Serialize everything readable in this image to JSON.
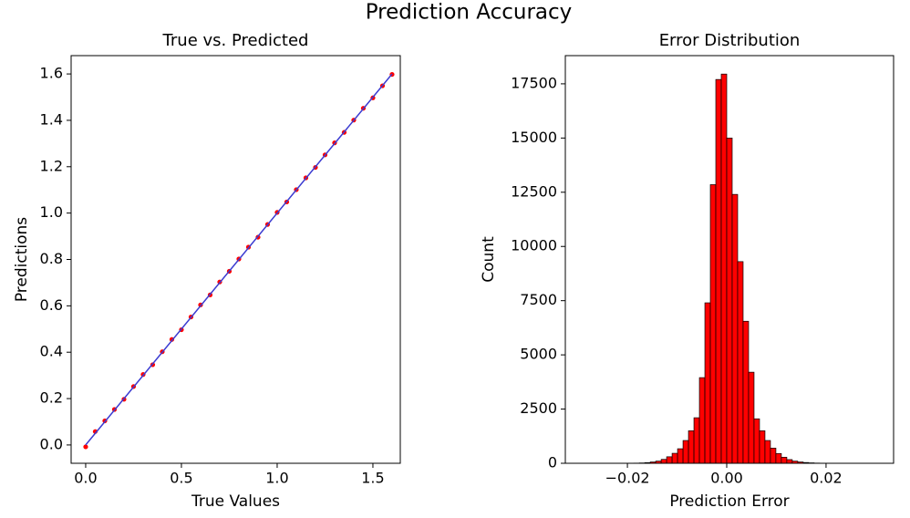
{
  "title": "Prediction Accuracy",
  "chart_data": [
    {
      "type": "scatter",
      "title": "True vs. Predicted",
      "xlabel": "True Values",
      "ylabel": "Predictions",
      "xlim": [
        -0.076,
        1.643
      ],
      "ylim": [
        -0.079,
        1.679
      ],
      "xticks": [
        {
          "value": 0,
          "label": "0.0"
        },
        {
          "value": 0.5,
          "label": "0.5"
        },
        {
          "value": 1,
          "label": "1.0"
        },
        {
          "value": 1.5,
          "label": "1.5"
        }
      ],
      "yticks": [
        {
          "value": 0,
          "label": "0.0"
        },
        {
          "value": 0.2,
          "label": "0.2"
        },
        {
          "value": 0.4,
          "label": "0.4"
        },
        {
          "value": 0.6,
          "label": "0.6"
        },
        {
          "value": 0.8,
          "label": "0.8"
        },
        {
          "value": 1,
          "label": "1.0"
        },
        {
          "value": 1.2,
          "label": "1.2"
        },
        {
          "value": 1.4,
          "label": "1.4"
        },
        {
          "value": 1.6,
          "label": "1.6"
        }
      ],
      "series": [
        {
          "color": "#ff0000",
          "x": [
            0,
            0.05,
            0.1,
            0.15,
            0.2,
            0.25,
            0.3,
            0.35,
            0.4,
            0.45,
            0.5,
            0.55,
            0.6,
            0.65,
            0.7,
            0.75,
            0.8,
            0.85,
            0.9,
            0.95,
            1,
            1.05,
            1.1,
            1.15,
            1.2,
            1.25,
            1.3,
            1.35,
            1.4,
            1.45,
            1.5,
            1.55,
            1.6
          ],
          "values": [
            -0.008,
            0.058,
            0.104,
            0.153,
            0.197,
            0.252,
            0.304,
            0.346,
            0.402,
            0.455,
            0.497,
            0.552,
            0.604,
            0.647,
            0.703,
            0.749,
            0.802,
            0.853,
            0.896,
            0.951,
            1.003,
            1.048,
            1.101,
            1.152,
            1.197,
            1.251,
            1.303,
            1.348,
            1.401,
            1.452,
            1.497,
            1.549,
            1.598
          ]
        },
        {
          "color": "#3b3bd1",
          "style": "line",
          "x": [
            0,
            1.6
          ],
          "values": [
            0,
            1.6
          ]
        }
      ]
    },
    {
      "type": "histogram",
      "title": "Error Distribution",
      "xlabel": "Prediction Error",
      "ylabel": "Count",
      "xlim": [
        -0.0325,
        0.0336
      ],
      "ylim": [
        0,
        18800
      ],
      "xticks": [
        {
          "value": -0.02,
          "label": "−0.02"
        },
        {
          "value": 0,
          "label": "0.00"
        },
        {
          "value": 0.02,
          "label": "0.02"
        }
      ],
      "yticks": [
        0,
        2500,
        5000,
        7500,
        10000,
        12500,
        15000,
        17500
      ],
      "color": "#ff0000",
      "edgecolor": "#000000",
      "bins": [
        -0.0275,
        -0.0264,
        -0.0253,
        -0.0242,
        -0.0231,
        -0.022,
        -0.0209,
        -0.0198,
        -0.0187,
        -0.0176,
        -0.0165,
        -0.0154,
        -0.0143,
        -0.0132,
        -0.0121,
        -0.011,
        -0.0099,
        -0.0088,
        -0.0077,
        -0.0066,
        -0.0055,
        -0.0044,
        -0.0033,
        -0.0022,
        -0.0011,
        0,
        0.0011,
        0.0022,
        0.0033,
        0.0044,
        0.0055,
        0.0066,
        0.0077,
        0.0088,
        0.0099,
        0.011,
        0.0121,
        0.0132,
        0.0143,
        0.0154,
        0.0165,
        0.0176,
        0.0187,
        0.0198,
        0.0209,
        0.022,
        0.0231,
        0.0242,
        0.0253
      ],
      "values": [
        0,
        0,
        1,
        2,
        3,
        4,
        5,
        6,
        8,
        15,
        30,
        60,
        100,
        180,
        300,
        460,
        670,
        1050,
        1500,
        2100,
        3950,
        7400,
        12850,
        17700,
        17950,
        15000,
        12400,
        9300,
        6550,
        4200,
        2050,
        1500,
        1050,
        700,
        450,
        280,
        170,
        100,
        60,
        35,
        20,
        10,
        6,
        3,
        2,
        1,
        1,
        0
      ]
    }
  ]
}
